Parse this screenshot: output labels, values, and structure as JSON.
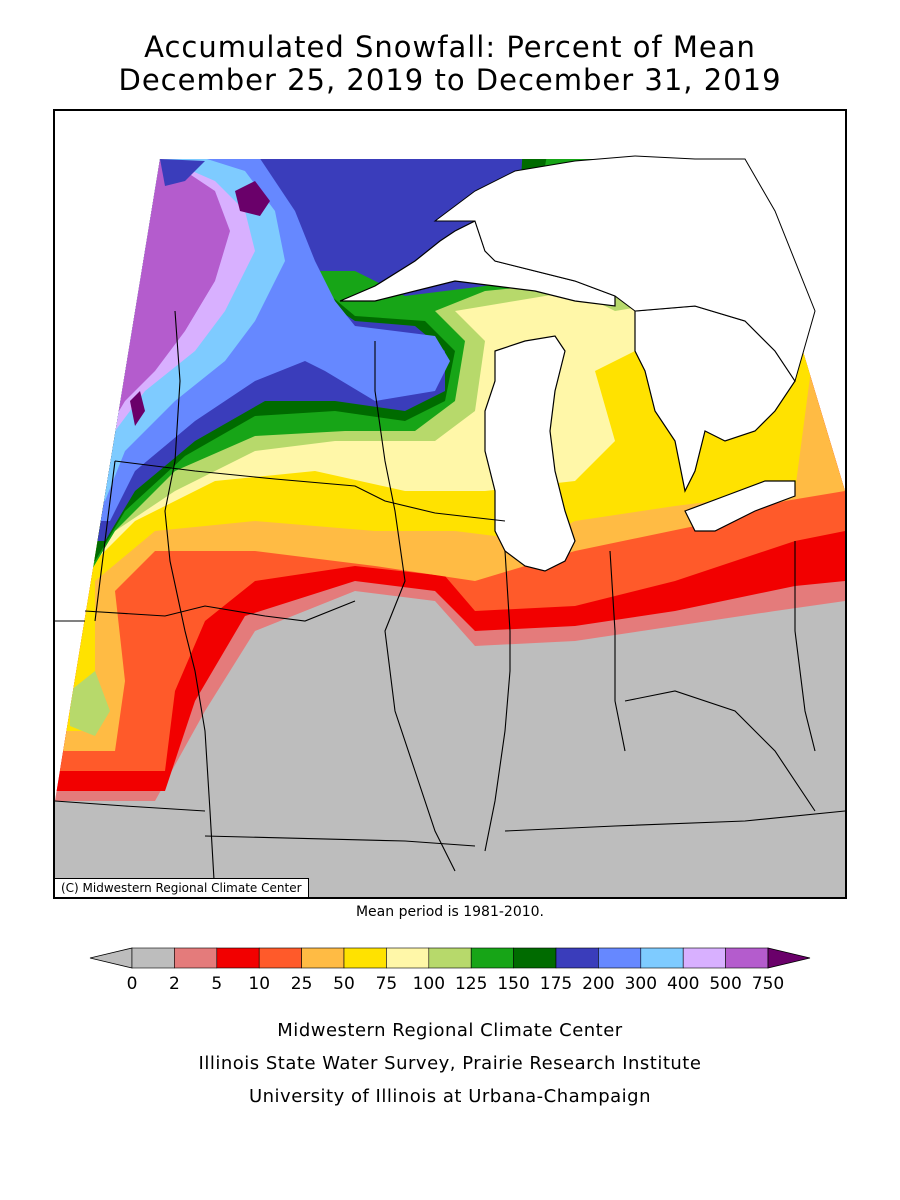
{
  "title": {
    "line1": "Accumulated Snowfall: Percent of Mean",
    "line2": "December 25, 2019 to December 31, 2019"
  },
  "map": {
    "copyright": "(C) Midwestern Regional Climate Center",
    "mean_period": "Mean period is 1981-2010.",
    "colors": {
      "0-2": "#bdbdbd",
      "2-5": "#e47b7b",
      "5-10": "#f20000",
      "10-25": "#ff5a2a",
      "25-50": "#ffbb44",
      "50-75": "#ffe200",
      "75-100": "#fff7a8",
      "100-125": "#b7d96b",
      "125-150": "#17a517",
      "150-175": "#006b00",
      "175-200": "#3a3dbb",
      "200-300": "#6688ff",
      "300-400": "#7ecbff",
      "400-500": "#d8b0ff",
      "500-750": "#b45ccd",
      ">750": "#6a006a"
    }
  },
  "legend": {
    "bins": [
      "#bdbdbd",
      "#e47b7b",
      "#f20000",
      "#ff5a2a",
      "#ffbb44",
      "#ffe200",
      "#fff7a8",
      "#b7d96b",
      "#17a517",
      "#006b00",
      "#3a3dbb",
      "#6688ff",
      "#7ecbff",
      "#d8b0ff",
      "#b45ccd"
    ],
    "under_color": "#bdbdbd",
    "over_color": "#6a006a",
    "ticks": [
      "0",
      "2",
      "5",
      "10",
      "25",
      "50",
      "75",
      "100",
      "125",
      "150",
      "175",
      "200",
      "300",
      "400",
      "500",
      "750"
    ]
  },
  "footer": {
    "line1": "Midwestern Regional Climate Center",
    "line2": "Illinois State Water Survey, Prairie Research Institute",
    "line3": "University of Illinois at Urbana-Champaign"
  }
}
